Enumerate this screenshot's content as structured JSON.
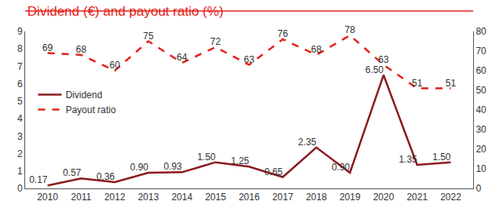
{
  "chart_data": {
    "type": "line",
    "title": "Dividend (€) and payout ratio (%)",
    "categories": [
      "2010",
      "2011",
      "2012",
      "2013",
      "2014",
      "2015",
      "2016",
      "2017",
      "2018",
      "2019",
      "2020",
      "2021",
      "2022"
    ],
    "series": [
      {
        "name": "Dividend",
        "color": "#8b1a1f",
        "line_style": "solid",
        "values": [
          0.17,
          0.57,
          0.36,
          0.9,
          0.93,
          1.5,
          1.25,
          0.65,
          2.35,
          0.9,
          6.5,
          1.35,
          1.5
        ],
        "value_labels": [
          "0.17",
          "0.57",
          "0.36",
          "0.90",
          "0.93",
          "1.50",
          "1.25",
          "0.65",
          "2.35",
          "0.90",
          "6.50",
          "1.35",
          "1.50"
        ]
      },
      {
        "name": "Payout ratio",
        "color": "#e2231a",
        "line_style": "dashed",
        "axis": "y2",
        "values": [
          69,
          68,
          60,
          75,
          64,
          72,
          63,
          76,
          68,
          78,
          63,
          51,
          51
        ]
      }
    ],
    "ylim": [
      0,
      9
    ],
    "yticks": [
      0,
      1,
      2,
      3,
      4,
      5,
      6,
      7,
      8,
      9
    ],
    "y2lim": [
      0,
      80
    ],
    "y2ticks": [
      0,
      10,
      20,
      30,
      40,
      50,
      60,
      70,
      80
    ],
    "data_labels": true,
    "grid": false,
    "legend": "left"
  }
}
